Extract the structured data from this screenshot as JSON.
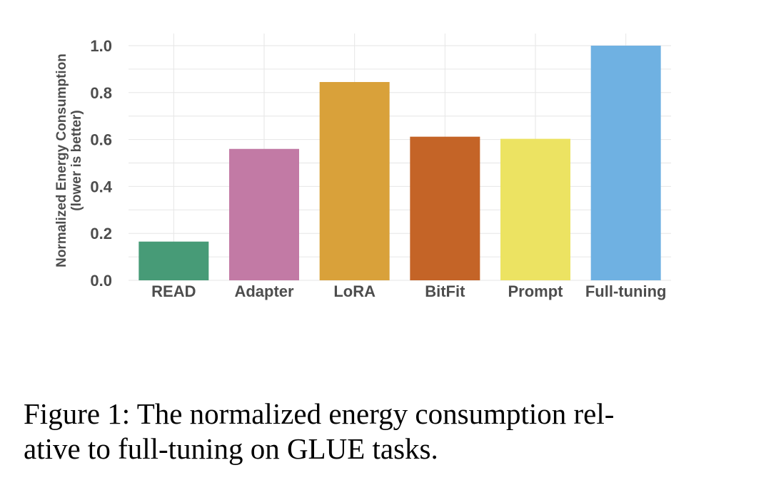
{
  "chart_data": {
    "type": "bar",
    "categories": [
      "READ",
      "Adapter",
      "LoRA",
      "BitFit",
      "Prompt",
      "Full-tuning"
    ],
    "values": [
      0.165,
      0.56,
      0.845,
      0.612,
      0.603,
      1.0
    ],
    "colors": [
      "#479b77",
      "#c27aa5",
      "#d9a13a",
      "#c46427",
      "#ece362",
      "#6fb1e2"
    ],
    "ylabel": [
      "Normalized Energy Consumption",
      "(lower is better)"
    ],
    "ylim": [
      0,
      1.0
    ],
    "yticks": [
      "0.0",
      "0.2",
      "0.4",
      "0.6",
      "0.8",
      "1.0"
    ],
    "grid": true,
    "legend": "none"
  },
  "caption": {
    "line1": "Figure 1: The normalized energy consumption rel-",
    "line2": "ative to full-tuning on GLUE tasks."
  }
}
